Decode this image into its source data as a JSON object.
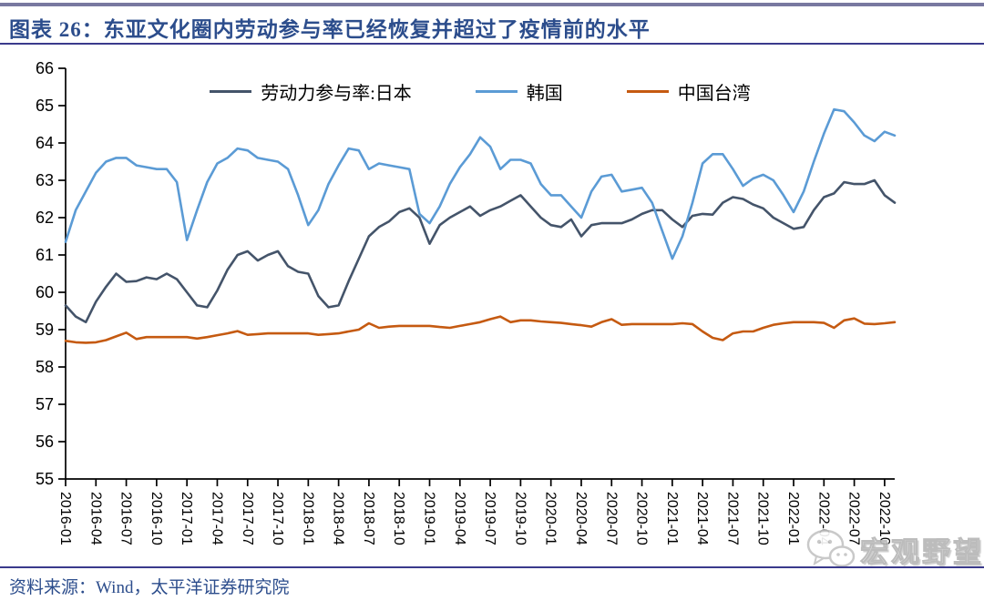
{
  "header": {
    "title": "图表 26：东亚文化圈内劳动参与率已经恢复并超过了疫情前的水平"
  },
  "footer": {
    "source": "资料来源：Wind，太平洋证券研究院"
  },
  "watermark": {
    "text": "宏观野望",
    "icon": "wechat-icon"
  },
  "colors": {
    "accent_navy": "#2c4d8c",
    "rule": "#3a3a8c",
    "axis": "#000000",
    "japan": "#44546A",
    "korea": "#5B9BD5",
    "taiwan": "#C55A11"
  },
  "chart_data": {
    "type": "line",
    "title": "东亚文化圈内劳动参与率已经恢复并超过了疫情前的水平",
    "xlabel": "",
    "ylabel": "",
    "ylim": [
      55,
      66
    ],
    "y_ticks": [
      55,
      56,
      57,
      58,
      59,
      60,
      61,
      62,
      63,
      64,
      65,
      66
    ],
    "grid": false,
    "legend_position": "top-center",
    "x_tick_labels": [
      "2016-01",
      "2016-04",
      "2016-07",
      "2016-10",
      "2017-01",
      "2017-04",
      "2017-07",
      "2017-10",
      "2018-01",
      "2018-04",
      "2018-07",
      "2018-10",
      "2019-01",
      "2019-04",
      "2019-07",
      "2019-10",
      "2020-01",
      "2020-04",
      "2020-07",
      "2020-10",
      "2021-01",
      "2021-04",
      "2021-07",
      "2021-10",
      "2022-01",
      "2022-04",
      "2022-07",
      "2022-10"
    ],
    "x": [
      "2016-01",
      "2016-02",
      "2016-03",
      "2016-04",
      "2016-05",
      "2016-06",
      "2016-07",
      "2016-08",
      "2016-09",
      "2016-10",
      "2016-11",
      "2016-12",
      "2017-01",
      "2017-02",
      "2017-03",
      "2017-04",
      "2017-05",
      "2017-06",
      "2017-07",
      "2017-08",
      "2017-09",
      "2017-10",
      "2017-11",
      "2017-12",
      "2018-01",
      "2018-02",
      "2018-03",
      "2018-04",
      "2018-05",
      "2018-06",
      "2018-07",
      "2018-08",
      "2018-09",
      "2018-10",
      "2018-11",
      "2018-12",
      "2019-01",
      "2019-02",
      "2019-03",
      "2019-04",
      "2019-05",
      "2019-06",
      "2019-07",
      "2019-08",
      "2019-09",
      "2019-10",
      "2019-11",
      "2019-12",
      "2020-01",
      "2020-02",
      "2020-03",
      "2020-04",
      "2020-05",
      "2020-06",
      "2020-07",
      "2020-08",
      "2020-09",
      "2020-10",
      "2020-11",
      "2020-12",
      "2021-01",
      "2021-02",
      "2021-03",
      "2021-04",
      "2021-05",
      "2021-06",
      "2021-07",
      "2021-08",
      "2021-09",
      "2021-10",
      "2021-11",
      "2021-12",
      "2022-01",
      "2022-02",
      "2022-03",
      "2022-04",
      "2022-05",
      "2022-06",
      "2022-07",
      "2022-08",
      "2022-09",
      "2022-10",
      "2022-11"
    ],
    "series": [
      {
        "name": "劳动力参与率:日本",
        "color": "#44546A",
        "values": [
          59.65,
          59.35,
          59.2,
          59.75,
          60.15,
          60.5,
          60.28,
          60.3,
          60.4,
          60.35,
          60.5,
          60.35,
          60.0,
          59.65,
          59.6,
          60.05,
          60.6,
          61.0,
          61.1,
          60.85,
          61.0,
          61.1,
          60.7,
          60.55,
          60.5,
          59.9,
          59.6,
          59.65,
          60.3,
          60.9,
          61.5,
          61.75,
          61.9,
          62.15,
          62.25,
          62.0,
          61.3,
          61.8,
          62.0,
          62.15,
          62.3,
          62.05,
          62.2,
          62.3,
          62.45,
          62.6,
          62.3,
          62.0,
          61.8,
          61.75,
          61.95,
          61.5,
          61.8,
          61.85,
          61.85,
          61.85,
          61.95,
          62.1,
          62.2,
          62.2,
          61.95,
          61.75,
          62.05,
          62.1,
          62.08,
          62.4,
          62.55,
          62.5,
          62.35,
          62.25,
          62.0,
          61.85,
          61.7,
          61.75,
          62.2,
          62.55,
          62.65,
          62.95,
          62.9,
          62.9,
          63.0,
          62.6,
          62.4
        ]
      },
      {
        "name": "韩国",
        "color": "#5B9BD5",
        "values": [
          61.35,
          62.2,
          62.7,
          63.2,
          63.5,
          63.6,
          63.6,
          63.4,
          63.35,
          63.3,
          63.3,
          62.95,
          61.4,
          62.2,
          62.95,
          63.45,
          63.6,
          63.85,
          63.8,
          63.6,
          63.55,
          63.5,
          63.3,
          62.6,
          61.8,
          62.2,
          62.9,
          63.4,
          63.85,
          63.8,
          63.3,
          63.45,
          63.4,
          63.35,
          63.3,
          62.1,
          61.85,
          62.3,
          62.9,
          63.35,
          63.7,
          64.15,
          63.9,
          63.3,
          63.55,
          63.55,
          63.45,
          62.9,
          62.6,
          62.6,
          62.3,
          62.0,
          62.7,
          63.1,
          63.15,
          62.7,
          62.75,
          62.8,
          62.4,
          61.65,
          60.9,
          61.5,
          62.4,
          63.45,
          63.7,
          63.7,
          63.3,
          62.85,
          63.05,
          63.15,
          63.0,
          62.6,
          62.15,
          62.7,
          63.5,
          64.25,
          64.9,
          64.85,
          64.55,
          64.2,
          64.05,
          64.3,
          64.2
        ]
      },
      {
        "name": "中国台湾",
        "color": "#C55A11",
        "values": [
          58.7,
          58.66,
          58.65,
          58.66,
          58.72,
          58.82,
          58.92,
          58.75,
          58.8,
          58.8,
          58.8,
          58.8,
          58.8,
          58.76,
          58.8,
          58.85,
          58.9,
          58.96,
          58.86,
          58.88,
          58.9,
          58.9,
          58.9,
          58.9,
          58.9,
          58.86,
          58.88,
          58.9,
          58.95,
          59.0,
          59.17,
          59.05,
          59.08,
          59.1,
          59.1,
          59.1,
          59.1,
          59.07,
          59.05,
          59.1,
          59.15,
          59.2,
          59.28,
          59.35,
          59.2,
          59.25,
          59.25,
          59.22,
          59.2,
          59.18,
          59.15,
          59.12,
          59.08,
          59.2,
          59.28,
          59.13,
          59.15,
          59.15,
          59.15,
          59.15,
          59.15,
          59.17,
          59.15,
          58.95,
          58.78,
          58.72,
          58.9,
          58.95,
          58.95,
          59.05,
          59.13,
          59.17,
          59.2,
          59.2,
          59.2,
          59.18,
          59.05,
          59.25,
          59.3,
          59.16,
          59.15,
          59.17,
          59.2
        ]
      }
    ]
  }
}
